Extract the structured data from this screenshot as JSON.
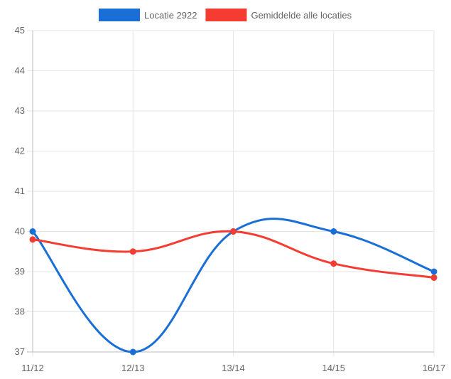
{
  "chart_data": {
    "type": "line",
    "title": "",
    "xlabel": "",
    "ylabel": "",
    "categories": [
      "11/12",
      "12/13",
      "13/14",
      "14/15",
      "16/17"
    ],
    "series": [
      {
        "name": "Locatie 2922",
        "color": "#1a6fd6",
        "values": [
          40,
          37,
          40,
          40,
          39
        ]
      },
      {
        "name": "Gemiddelde alle locaties",
        "color": "#f43c33",
        "values": [
          39.8,
          39.5,
          40,
          39.2,
          38.85
        ]
      }
    ],
    "ylim": [
      37,
      45
    ],
    "yticks": [
      37,
      38,
      39,
      40,
      41,
      42,
      43,
      44,
      45
    ],
    "grid": true,
    "legend_position": "top"
  },
  "colors": {
    "grid": "#e6e6e6",
    "axis": "#bdbdbd",
    "tick_text": "#666666"
  }
}
